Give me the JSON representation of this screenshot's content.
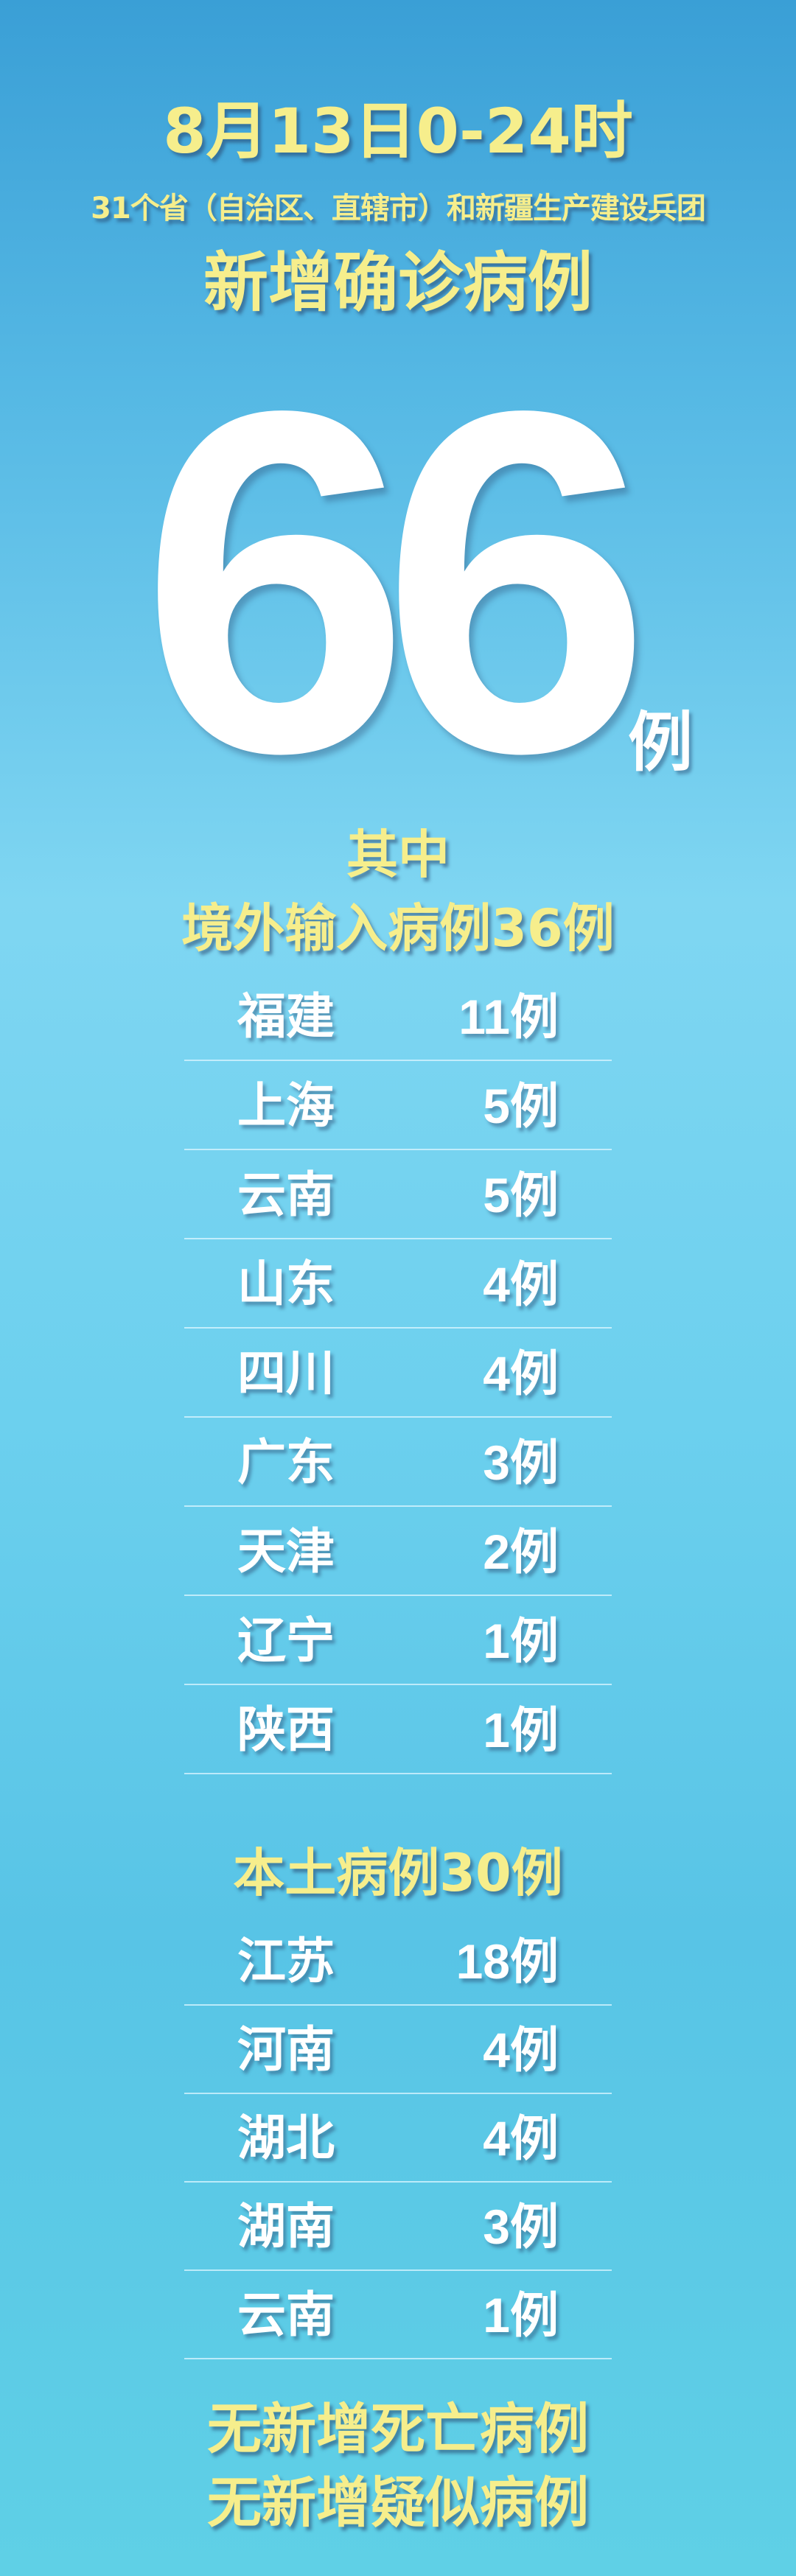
{
  "header": {
    "time_range": "8月13日0-24时",
    "scope": "31个省（自治区、直辖市）和新疆生产建设兵团",
    "headline": "新增确诊病例"
  },
  "total": {
    "value": "66",
    "unit": "例"
  },
  "imported": {
    "intro": "其中",
    "title": "境外输入病例36例",
    "rows": [
      {
        "name": "福建",
        "count": "11例"
      },
      {
        "name": "上海",
        "count": "5例"
      },
      {
        "name": "云南",
        "count": "5例"
      },
      {
        "name": "山东",
        "count": "4例"
      },
      {
        "name": "四川",
        "count": "4例"
      },
      {
        "name": "广东",
        "count": "3例"
      },
      {
        "name": "天津",
        "count": "2例"
      },
      {
        "name": "辽宁",
        "count": "1例"
      },
      {
        "name": "陕西",
        "count": "1例"
      }
    ]
  },
  "local": {
    "title": "本土病例30例",
    "rows": [
      {
        "name": "江苏",
        "count": "18例"
      },
      {
        "name": "河南",
        "count": "4例"
      },
      {
        "name": "湖北",
        "count": "4例"
      },
      {
        "name": "湖南",
        "count": "3例"
      },
      {
        "name": "云南",
        "count": "1例"
      }
    ]
  },
  "footer": {
    "no_deaths": "无新增死亡病例",
    "no_suspected": "无新增疑似病例"
  },
  "colors": {
    "accent_yellow": "#f6ee8c",
    "text_white": "#ffffff",
    "background_blue": "#6cd0ee"
  }
}
